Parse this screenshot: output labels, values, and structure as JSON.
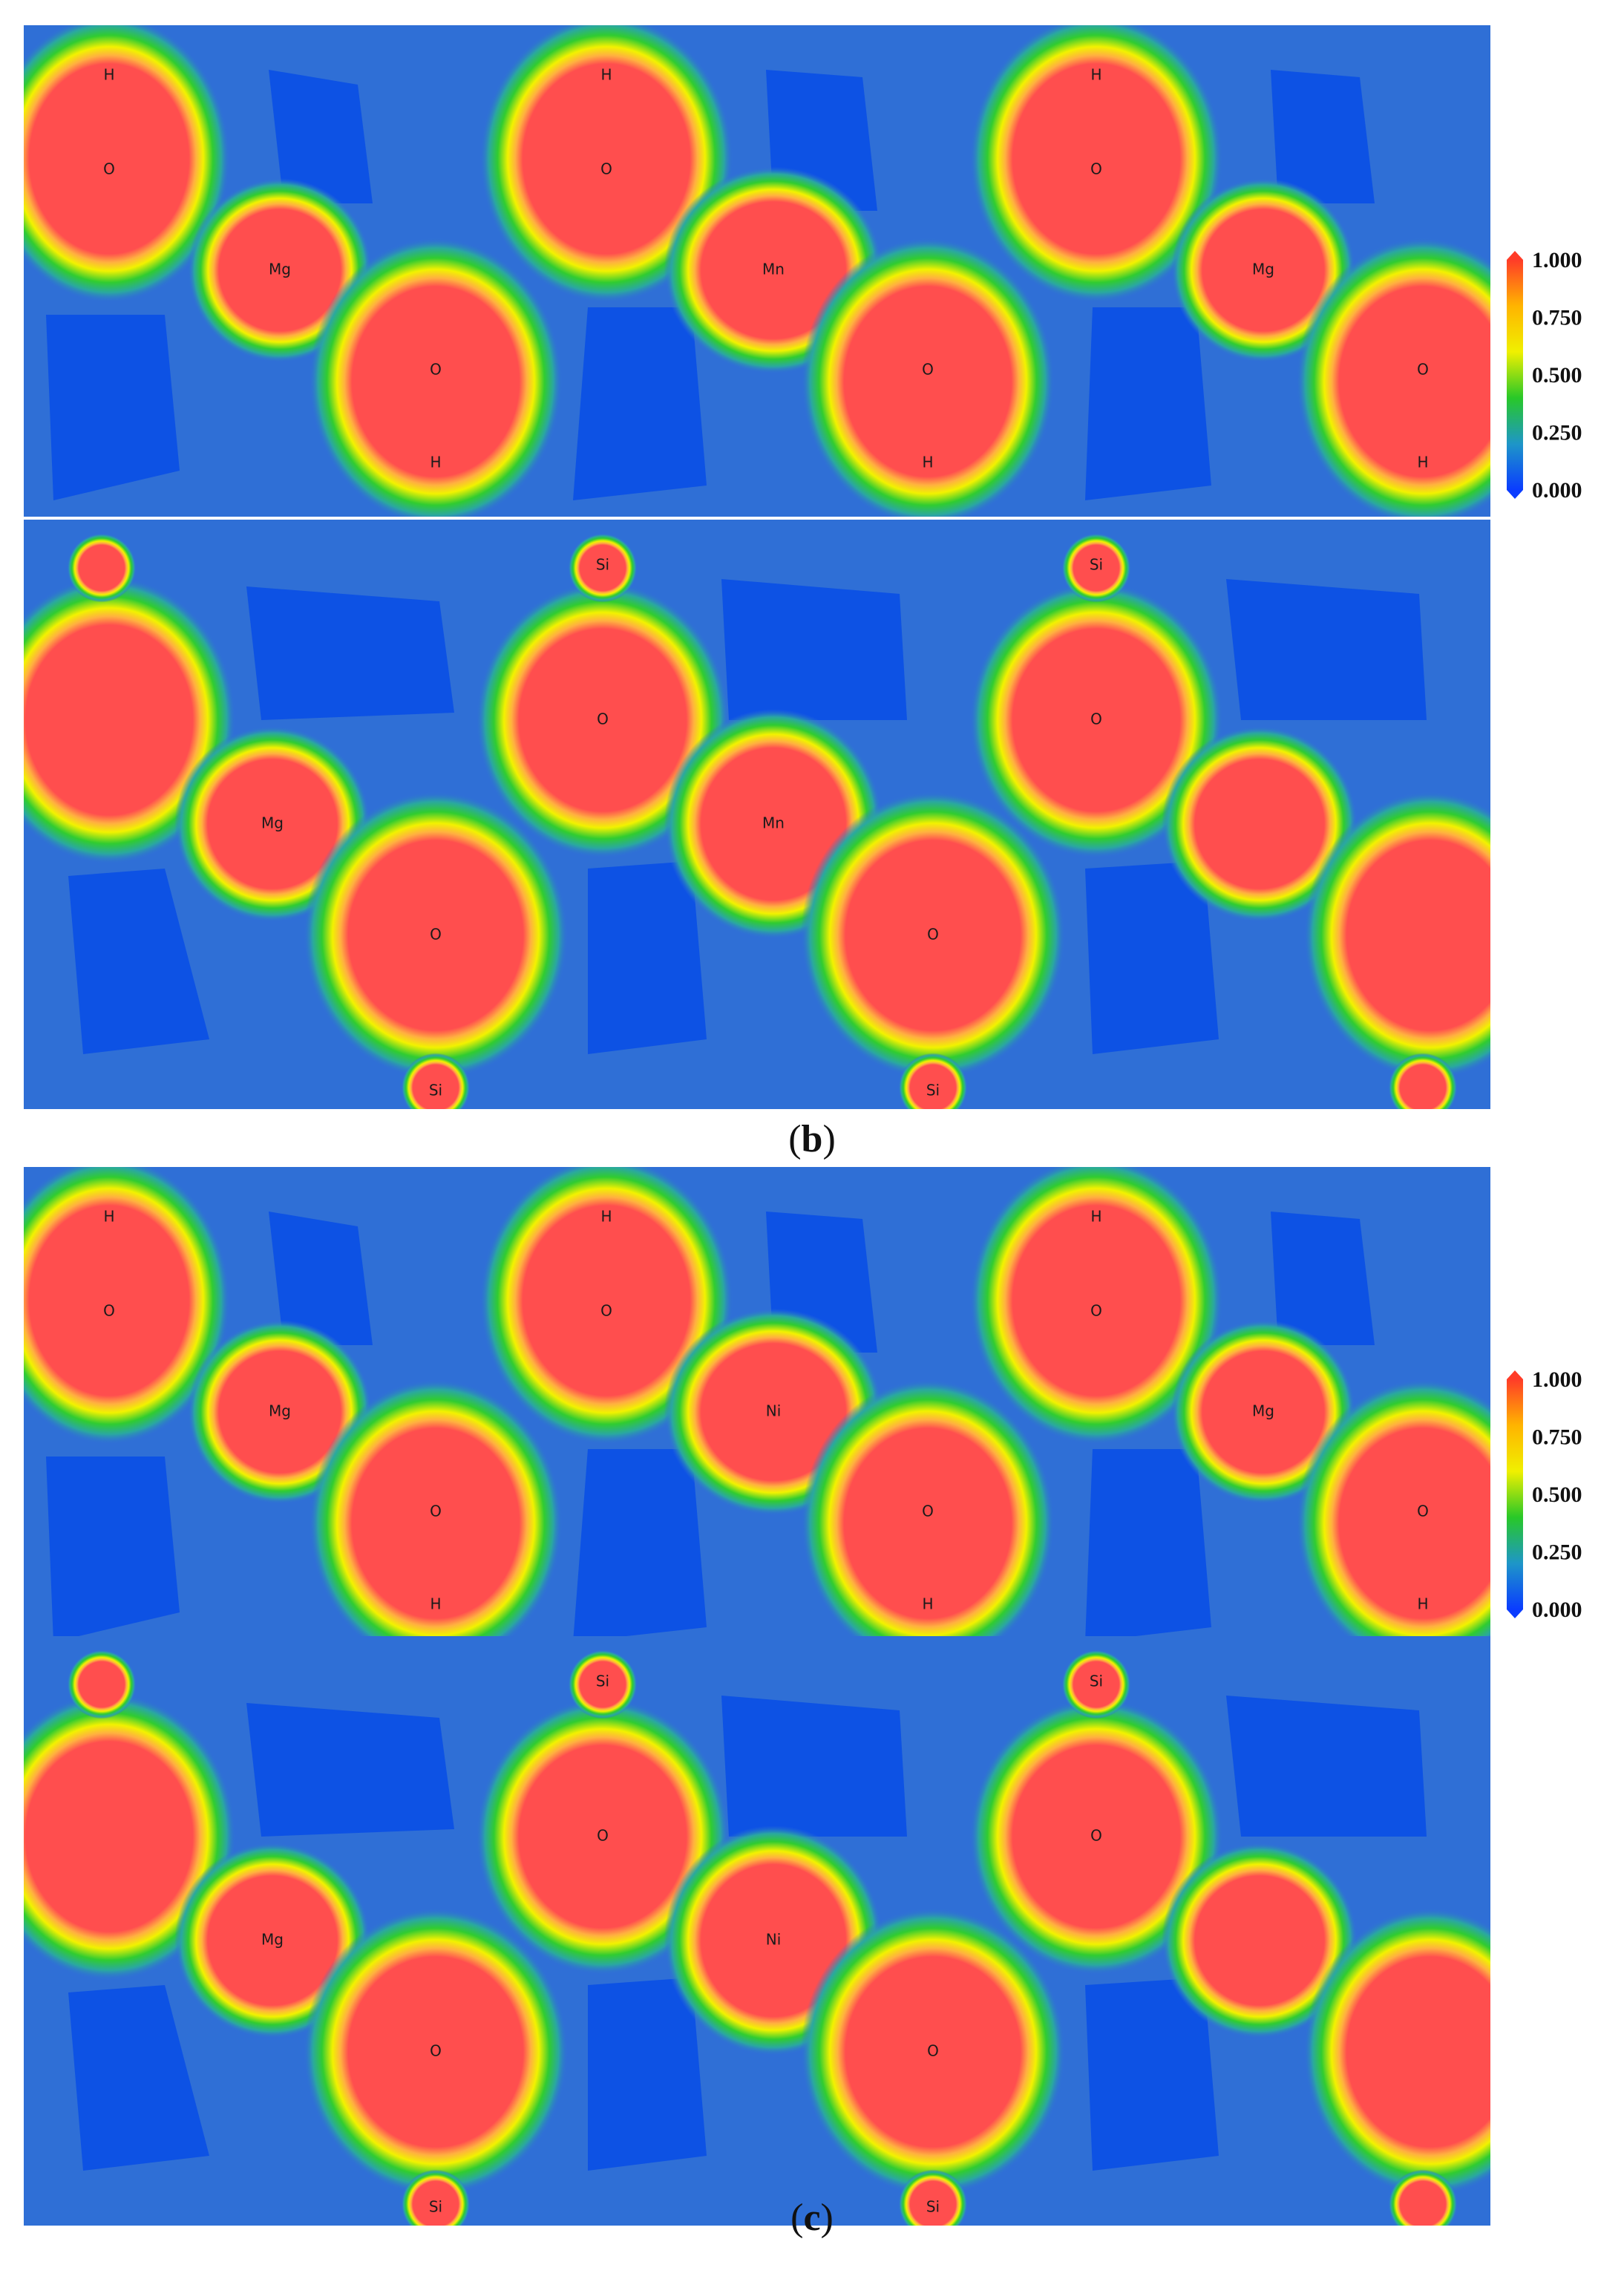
{
  "colors": {
    "background": "#2f6fd6",
    "deep": "#0a4fe6",
    "high": "#ff4e4e"
  },
  "colorbar": {
    "ticks": [
      "1.000",
      "0.750",
      "0.500",
      "0.250",
      "0.000"
    ],
    "range": [
      0,
      1
    ],
    "stops": [
      "#ff3c28",
      "#ffb400",
      "#f0f000",
      "#28c828",
      "#1e96c8",
      "#0a3cff"
    ]
  },
  "captions": {
    "b": {
      "open": "(",
      "letter": "b",
      "close": ")"
    },
    "c": {
      "open": "(",
      "letter": "c",
      "close": ")"
    }
  },
  "figures": {
    "b": {
      "top": [
        "H",
        "H",
        "H",
        "O",
        "O",
        "O",
        "Mg",
        "Mn",
        "Mg",
        "O",
        "O",
        "O",
        "H",
        "H",
        "H"
      ],
      "bottom": [
        "Si",
        "Si",
        "O",
        "O",
        "Mg",
        "Mn",
        "O",
        "O",
        "Si",
        "Si"
      ]
    },
    "c": {
      "top": [
        "H",
        "H",
        "H",
        "O",
        "O",
        "O",
        "Mg",
        "Ni",
        "Mg",
        "O",
        "O",
        "O",
        "H",
        "H",
        "H"
      ],
      "bottom": [
        "Si",
        "Si",
        "O",
        "O",
        "Mg",
        "Ni",
        "O",
        "O",
        "Si",
        "Si"
      ]
    }
  }
}
